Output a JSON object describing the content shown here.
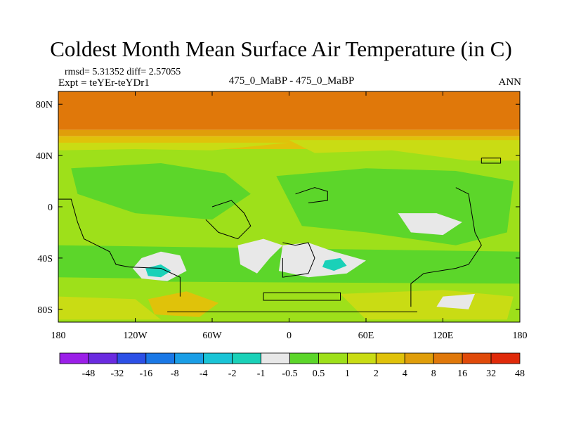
{
  "chart_data": {
    "type": "heatmap",
    "title": "Coldest Month Mean Surface Air Temperature (in C)",
    "stats_line": "rmsd= 5.31352 diff= 2.57055",
    "experiment_line": "Expt = teYEr-teYDr1",
    "case_label": "475_0_MaBP - 475_0_MaBP",
    "season_label": "ANN",
    "x_range": [
      -180,
      180
    ],
    "y_range": [
      -90,
      90
    ],
    "x_ticks": [
      {
        "value": -180,
        "label": "180"
      },
      {
        "value": -120,
        "label": "120W"
      },
      {
        "value": -60,
        "label": "60W"
      },
      {
        "value": 0,
        "label": "0"
      },
      {
        "value": 60,
        "label": "60E"
      },
      {
        "value": 120,
        "label": "120E"
      },
      {
        "value": 180,
        "label": "180"
      }
    ],
    "y_ticks": [
      {
        "value": 80,
        "label": "80N"
      },
      {
        "value": 40,
        "label": "40N"
      },
      {
        "value": 0,
        "label": "0"
      },
      {
        "value": -40,
        "label": "40S"
      },
      {
        "value": -80,
        "label": "80S"
      }
    ],
    "colorbar": {
      "colors": [
        "#9b1fe8",
        "#6a2be0",
        "#2c50e6",
        "#1a78e6",
        "#1a9ee6",
        "#1ac4d6",
        "#1ad1b8",
        "#e8e8e8",
        "#5cd62a",
        "#9ee01a",
        "#c9dc14",
        "#e0c20a",
        "#e09e0a",
        "#e0780a",
        "#e04a0a",
        "#e02a0a"
      ],
      "labels": [
        "-48",
        "-32",
        "-16",
        "-8",
        "-4",
        "-2",
        "-1",
        "-0.5",
        "0.5",
        "1",
        "2",
        "4",
        "8",
        "16",
        "32",
        "48"
      ]
    },
    "zonal_bands": [
      {
        "lat": [
          60,
          90
        ],
        "value": 24,
        "color": "#e0780a"
      },
      {
        "lat": [
          55,
          60
        ],
        "value": 10,
        "color": "#e09e0a"
      },
      {
        "lat": [
          45,
          55
        ],
        "value": 5,
        "color": "#e0c20a"
      },
      {
        "lat": [
          -90,
          45
        ],
        "value": 1.5,
        "color": "#9ee01a"
      }
    ],
    "regions": [
      {
        "label": "north-yellow-band-east",
        "value": 3,
        "color": "#c9dc14",
        "lonlat": [
          [
            0,
            52
          ],
          [
            180,
            52
          ],
          [
            180,
            36
          ],
          [
            140,
            36
          ],
          [
            80,
            44
          ],
          [
            20,
            42
          ]
        ]
      },
      {
        "label": "north-yellow-band-west",
        "value": 3,
        "color": "#c9dc14",
        "lonlat": [
          [
            -180,
            50
          ],
          [
            0,
            50
          ],
          [
            -60,
            44
          ],
          [
            -120,
            45
          ],
          [
            -180,
            44
          ]
        ]
      },
      {
        "label": "equatorial-green-west",
        "value": 0.8,
        "color": "#5cd62a",
        "lonlat": [
          [
            -170,
            30
          ],
          [
            -100,
            34
          ],
          [
            -50,
            26
          ],
          [
            -30,
            10
          ],
          [
            -60,
            -10
          ],
          [
            -120,
            -5
          ],
          [
            -165,
            10
          ]
        ]
      },
      {
        "label": "equatorial-green-east",
        "value": 0.8,
        "color": "#5cd62a",
        "lonlat": [
          [
            -10,
            24
          ],
          [
            60,
            30
          ],
          [
            130,
            28
          ],
          [
            175,
            20
          ],
          [
            170,
            -20
          ],
          [
            130,
            -30
          ],
          [
            60,
            -20
          ],
          [
            10,
            -15
          ]
        ]
      },
      {
        "label": "south-green-belt",
        "value": 0.8,
        "color": "#5cd62a",
        "lonlat": [
          [
            -180,
            -30
          ],
          [
            180,
            -35
          ],
          [
            180,
            -60
          ],
          [
            -180,
            -58
          ]
        ]
      },
      {
        "label": "south-pacific-lightgreen",
        "value": 1.5,
        "color": "#9ee01a",
        "lonlat": [
          [
            -180,
            -55
          ],
          [
            -110,
            -56
          ],
          [
            -60,
            -65
          ],
          [
            -110,
            -75
          ],
          [
            -180,
            -70
          ]
        ]
      },
      {
        "label": "antarctic-yellow-west",
        "value": 3,
        "color": "#c9dc14",
        "lonlat": [
          [
            -180,
            -70
          ],
          [
            -120,
            -72
          ],
          [
            -100,
            -88
          ],
          [
            -180,
            -88
          ]
        ]
      },
      {
        "label": "antarctic-orange-west",
        "value": 5,
        "color": "#e0c20a",
        "lonlat": [
          [
            -110,
            -72
          ],
          [
            -80,
            -66
          ],
          [
            -55,
            -75
          ],
          [
            -70,
            -86
          ],
          [
            -105,
            -84
          ]
        ]
      },
      {
        "label": "antarctic-yellow-east",
        "value": 3,
        "color": "#c9dc14",
        "lonlat": [
          [
            40,
            -68
          ],
          [
            120,
            -65
          ],
          [
            175,
            -70
          ],
          [
            170,
            -88
          ],
          [
            60,
            -88
          ]
        ]
      },
      {
        "label": "south-white-west",
        "value": 0,
        "color": "#e8e8e8",
        "lonlat": [
          [
            -115,
            -40
          ],
          [
            -100,
            -35
          ],
          [
            -85,
            -38
          ],
          [
            -80,
            -50
          ],
          [
            -95,
            -58
          ],
          [
            -115,
            -56
          ],
          [
            -122,
            -48
          ]
        ]
      },
      {
        "label": "south-white-central",
        "value": 0,
        "color": "#e8e8e8",
        "lonlat": [
          [
            -40,
            -30
          ],
          [
            -20,
            -25
          ],
          [
            -5,
            -30
          ],
          [
            -15,
            -40
          ],
          [
            -25,
            -52
          ],
          [
            -38,
            -45
          ]
        ]
      },
      {
        "label": "south-white-africa",
        "value": 0,
        "color": "#e8e8e8",
        "lonlat": [
          [
            -5,
            -30
          ],
          [
            15,
            -28
          ],
          [
            35,
            -35
          ],
          [
            60,
            -42
          ],
          [
            45,
            -52
          ],
          [
            15,
            -55
          ],
          [
            -8,
            -50
          ]
        ]
      },
      {
        "label": "equatorial-white-east",
        "value": 0,
        "color": "#e8e8e8",
        "lonlat": [
          [
            85,
            -5
          ],
          [
            115,
            -5
          ],
          [
            135,
            -12
          ],
          [
            120,
            -22
          ],
          [
            95,
            -20
          ]
        ]
      },
      {
        "label": "south-cyan-west",
        "value": -1,
        "color": "#1ad1b8",
        "lonlat": [
          [
            -112,
            -48
          ],
          [
            -100,
            -45
          ],
          [
            -92,
            -50
          ],
          [
            -100,
            -55
          ],
          [
            -110,
            -54
          ]
        ]
      },
      {
        "label": "south-cyan-africa",
        "value": -1,
        "color": "#1ad1b8",
        "lonlat": [
          [
            28,
            -42
          ],
          [
            40,
            -40
          ],
          [
            45,
            -46
          ],
          [
            35,
            -50
          ],
          [
            26,
            -47
          ]
        ]
      },
      {
        "label": "antarctic-white-patch",
        "value": 0,
        "color": "#e8e8e8",
        "lonlat": [
          [
            120,
            -70
          ],
          [
            145,
            -68
          ],
          [
            140,
            -80
          ],
          [
            115,
            -78
          ]
        ]
      }
    ],
    "land_outlines": [
      {
        "label": "west-coast-outline",
        "lonlat": [
          [
            -180,
            6
          ],
          [
            -170,
            6
          ],
          [
            -165,
            -12
          ],
          [
            -160,
            -25
          ],
          [
            -150,
            -30
          ],
          [
            -140,
            -35
          ],
          [
            -135,
            -45
          ],
          [
            -125,
            -47
          ],
          [
            -100,
            -48
          ],
          [
            -85,
            -55
          ],
          [
            -85,
            -70
          ]
        ]
      },
      {
        "label": "central-continent-outline",
        "lonlat": [
          [
            -60,
            0
          ],
          [
            -45,
            5
          ],
          [
            -40,
            0
          ],
          [
            -35,
            -5
          ],
          [
            -30,
            -15
          ],
          [
            -40,
            -25
          ],
          [
            -55,
            -20
          ],
          [
            -65,
            -10
          ]
        ]
      },
      {
        "label": "africa-outline",
        "lonlat": [
          [
            -5,
            -28
          ],
          [
            5,
            -30
          ],
          [
            15,
            -28
          ],
          [
            20,
            -40
          ],
          [
            15,
            -52
          ],
          [
            -5,
            -55
          ],
          [
            -5,
            -40
          ]
        ]
      },
      {
        "label": "asia-outline",
        "lonlat": [
          [
            5,
            10
          ],
          [
            20,
            15
          ],
          [
            30,
            12
          ],
          [
            30,
            5
          ],
          [
            15,
            3
          ]
        ]
      },
      {
        "label": "east-coast-outline",
        "lonlat": [
          [
            130,
            15
          ],
          [
            140,
            10
          ],
          [
            145,
            -20
          ],
          [
            150,
            -30
          ],
          [
            140,
            -45
          ],
          [
            130,
            -48
          ],
          [
            105,
            -52
          ],
          [
            95,
            -60
          ],
          [
            95,
            -78
          ]
        ]
      },
      {
        "label": "antarctic-coast-outline",
        "lonlat": [
          [
            -95,
            -82
          ],
          [
            100,
            -82
          ]
        ]
      },
      {
        "label": "east-box-outline",
        "lonlat": [
          [
            150,
            38
          ],
          [
            165,
            38
          ],
          [
            165,
            34
          ],
          [
            150,
            34
          ],
          [
            150,
            38
          ]
        ]
      },
      {
        "label": "southern-bar-outline",
        "lonlat": [
          [
            -20,
            -67
          ],
          [
            40,
            -67
          ],
          [
            40,
            -73
          ],
          [
            -20,
            -73
          ],
          [
            -20,
            -67
          ]
        ]
      }
    ]
  }
}
